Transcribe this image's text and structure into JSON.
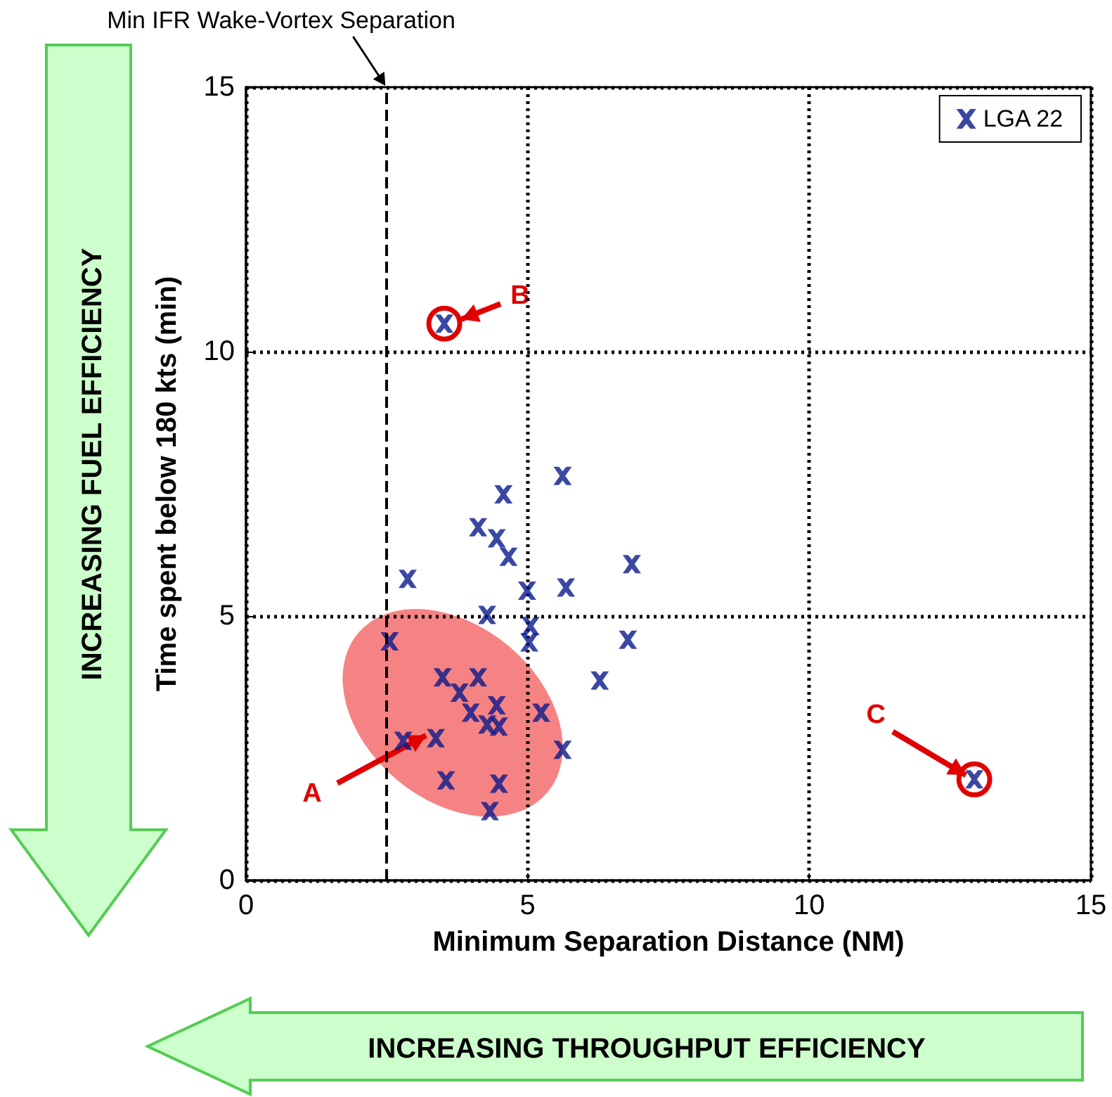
{
  "chart_data": {
    "type": "scatter",
    "xlabel": "Minimum Separation Distance (NM)",
    "ylabel": "Time spent below 180 kts (min)",
    "xlim": [
      0,
      15
    ],
    "ylim": [
      0,
      15
    ],
    "xticks": [
      0,
      5,
      10,
      15
    ],
    "yticks": [
      0,
      5,
      10,
      15
    ],
    "grid": true,
    "legend": "top right",
    "marker": "cross",
    "series": [
      {
        "name": "LGA 22",
        "color": "#0a1a8c",
        "x": [
          5.62,
          4.57,
          4.12,
          4.45,
          4.66,
          2.87,
          6.85,
          4.99,
          5.68,
          4.28,
          5.05,
          5.03,
          6.78,
          6.28,
          2.55,
          3.49,
          4.12,
          3.79,
          3.99,
          4.45,
          4.28,
          4.49,
          5.24,
          2.79,
          3.37,
          5.62,
          3.55,
          4.49,
          4.33,
          3.52,
          12.93
        ],
        "values": [
          7.65,
          7.3,
          6.68,
          6.47,
          6.12,
          5.7,
          5.98,
          5.48,
          5.54,
          5.02,
          4.81,
          4.5,
          4.55,
          3.78,
          4.52,
          3.84,
          3.84,
          3.55,
          3.17,
          3.31,
          2.95,
          2.91,
          3.17,
          2.64,
          2.69,
          2.47,
          1.89,
          1.83,
          1.31,
          10.53,
          1.91
        ]
      }
    ],
    "ref_lines": [
      {
        "axis": "x",
        "value": 2.5,
        "label": "Min IFR Wake-Vortex Separation",
        "line_style": "dashed",
        "color": "#000000"
      }
    ],
    "annotations": [
      {
        "text": "A",
        "x": 3.37,
        "y": 2.69
      },
      {
        "text": "B",
        "x": 3.52,
        "y": 10.53
      },
      {
        "text": "C",
        "x": 12.93,
        "y": 1.91
      },
      "INCREASING FUEL EFFICIENCY",
      "INCREASING THROUGHPUT EFFICIENCY"
    ]
  }
}
